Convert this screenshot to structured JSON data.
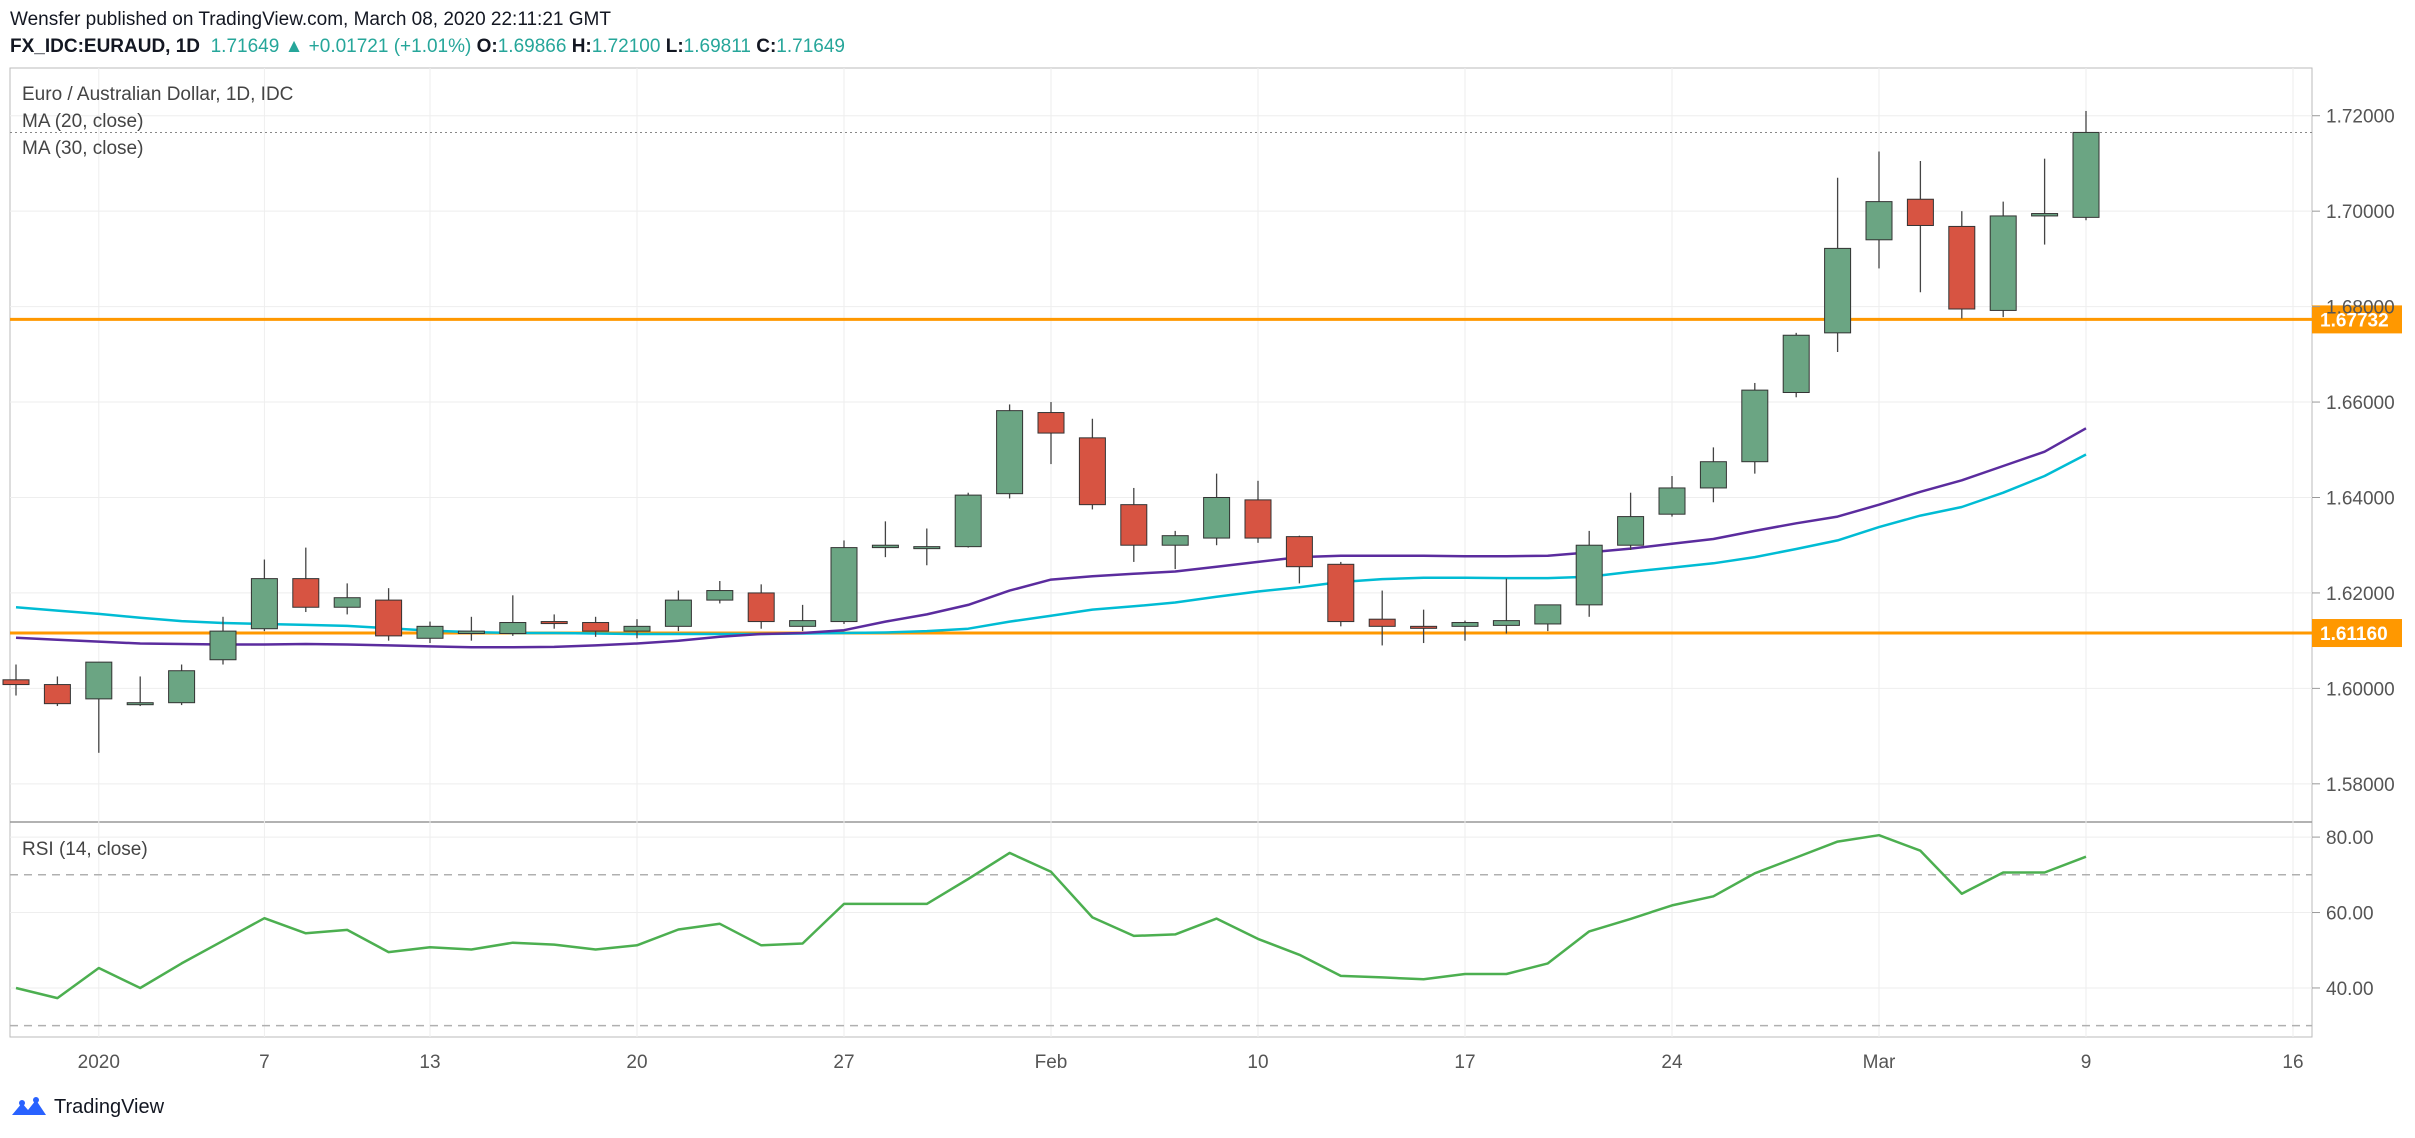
{
  "header": {
    "publisher_line": "Wensfer published on TradingView.com, March 08, 2020 22:11:21 GMT",
    "symbol": "FX_IDC:EURAUD, 1D",
    "last": "1.71649",
    "change": "+0.01721 (+1.01%)",
    "o_label": "O:",
    "o_val": "1.69866",
    "h_label": "H:",
    "h_val": "1.72100",
    "l_label": "L:",
    "l_val": "1.69811",
    "c_label": "C:",
    "c_val": "1.71649"
  },
  "footer": {
    "brand": "TradingView"
  },
  "colors": {
    "up": "#6ba583",
    "down": "#d75442",
    "ma20": "#5b2c9e",
    "ma30": "#00bcd4",
    "rsi": "#4caf50",
    "level": "#ff9800",
    "grid": "#eeeeee",
    "axis_text": "#555555"
  },
  "chart_data": [
    {
      "type": "candlestick",
      "title": "Euro / Australian Dollar, 1D, IDC",
      "indicators": [
        "MA (20, close)",
        "MA (30, close)"
      ],
      "ylim": [
        1.572,
        1.73
      ],
      "y_ticks": [
        "1.58000",
        "1.60000",
        "1.62000",
        "1.64000",
        "1.66000",
        "1.68000",
        "1.70000",
        "1.72000"
      ],
      "x_ticks": [
        {
          "label": "2020",
          "index": 2
        },
        {
          "label": "7",
          "index": 6
        },
        {
          "label": "13",
          "index": 10
        },
        {
          "label": "20",
          "index": 15
        },
        {
          "label": "27",
          "index": 20
        },
        {
          "label": "Feb",
          "index": 25
        },
        {
          "label": "10",
          "index": 30
        },
        {
          "label": "17",
          "index": 35
        },
        {
          "label": "24",
          "index": 40
        },
        {
          "label": "Mar",
          "index": 45
        },
        {
          "label": "9",
          "index": 50
        },
        {
          "label": "16",
          "index": 55
        }
      ],
      "levels": [
        {
          "label": "1.67732",
          "value": 1.67732
        },
        {
          "label": "1.61160",
          "value": 1.6116
        }
      ],
      "last_price": 1.71649,
      "candles": [
        {
          "o": 1.6018,
          "h": 1.605,
          "l": 1.5985,
          "c": 1.6008
        },
        {
          "o": 1.6008,
          "h": 1.6025,
          "l": 1.5963,
          "c": 1.5968
        },
        {
          "o": 1.5978,
          "h": 1.6055,
          "l": 1.5865,
          "c": 1.6055
        },
        {
          "o": 1.5968,
          "h": 1.6025,
          "l": 1.5963,
          "c": 1.597
        },
        {
          "o": 1.597,
          "h": 1.605,
          "l": 1.5965,
          "c": 1.6037
        },
        {
          "o": 1.606,
          "h": 1.615,
          "l": 1.605,
          "c": 1.612
        },
        {
          "o": 1.6125,
          "h": 1.627,
          "l": 1.612,
          "c": 1.623
        },
        {
          "o": 1.623,
          "h": 1.6295,
          "l": 1.616,
          "c": 1.617
        },
        {
          "o": 1.617,
          "h": 1.622,
          "l": 1.6155,
          "c": 1.619
        },
        {
          "o": 1.6185,
          "h": 1.621,
          "l": 1.61,
          "c": 1.611
        },
        {
          "o": 1.6105,
          "h": 1.614,
          "l": 1.6095,
          "c": 1.613
        },
        {
          "o": 1.6115,
          "h": 1.615,
          "l": 1.61,
          "c": 1.612
        },
        {
          "o": 1.6115,
          "h": 1.6195,
          "l": 1.611,
          "c": 1.6138
        },
        {
          "o": 1.614,
          "h": 1.6155,
          "l": 1.6125,
          "c": 1.6137
        },
        {
          "o": 1.6138,
          "h": 1.615,
          "l": 1.6108,
          "c": 1.612
        },
        {
          "o": 1.612,
          "h": 1.6145,
          "l": 1.6105,
          "c": 1.613
        },
        {
          "o": 1.613,
          "h": 1.6205,
          "l": 1.612,
          "c": 1.6185
        },
        {
          "o": 1.6185,
          "h": 1.6225,
          "l": 1.6178,
          "c": 1.6205
        },
        {
          "o": 1.62,
          "h": 1.6218,
          "l": 1.6125,
          "c": 1.614
        },
        {
          "o": 1.613,
          "h": 1.6175,
          "l": 1.612,
          "c": 1.6142
        },
        {
          "o": 1.614,
          "h": 1.631,
          "l": 1.6135,
          "c": 1.6295
        },
        {
          "o": 1.6295,
          "h": 1.635,
          "l": 1.6275,
          "c": 1.63
        },
        {
          "o": 1.6297,
          "h": 1.6335,
          "l": 1.6258,
          "c": 1.6297
        },
        {
          "o": 1.6297,
          "h": 1.641,
          "l": 1.6295,
          "c": 1.6405
        },
        {
          "o": 1.6408,
          "h": 1.6595,
          "l": 1.6398,
          "c": 1.6582
        },
        {
          "o": 1.6578,
          "h": 1.66,
          "l": 1.647,
          "c": 1.6535
        },
        {
          "o": 1.6525,
          "h": 1.6565,
          "l": 1.6375,
          "c": 1.6385
        },
        {
          "o": 1.6385,
          "h": 1.642,
          "l": 1.6265,
          "c": 1.63
        },
        {
          "o": 1.63,
          "h": 1.633,
          "l": 1.625,
          "c": 1.632
        },
        {
          "o": 1.6315,
          "h": 1.645,
          "l": 1.63,
          "c": 1.64
        },
        {
          "o": 1.6395,
          "h": 1.6435,
          "l": 1.6305,
          "c": 1.6315
        },
        {
          "o": 1.6318,
          "h": 1.632,
          "l": 1.622,
          "c": 1.6255
        },
        {
          "o": 1.626,
          "h": 1.6265,
          "l": 1.613,
          "c": 1.614
        },
        {
          "o": 1.6145,
          "h": 1.6205,
          "l": 1.609,
          "c": 1.613
        },
        {
          "o": 1.613,
          "h": 1.6165,
          "l": 1.6095,
          "c": 1.6127
        },
        {
          "o": 1.613,
          "h": 1.6142,
          "l": 1.61,
          "c": 1.6138
        },
        {
          "o": 1.6132,
          "h": 1.623,
          "l": 1.6115,
          "c": 1.6142
        },
        {
          "o": 1.6135,
          "h": 1.6175,
          "l": 1.612,
          "c": 1.6175
        },
        {
          "o": 1.6175,
          "h": 1.633,
          "l": 1.615,
          "c": 1.63
        },
        {
          "o": 1.63,
          "h": 1.641,
          "l": 1.629,
          "c": 1.636
        },
        {
          "o": 1.6365,
          "h": 1.6445,
          "l": 1.636,
          "c": 1.642
        },
        {
          "o": 1.642,
          "h": 1.6505,
          "l": 1.639,
          "c": 1.6475
        },
        {
          "o": 1.6475,
          "h": 1.664,
          "l": 1.645,
          "c": 1.6625
        },
        {
          "o": 1.662,
          "h": 1.6745,
          "l": 1.661,
          "c": 1.674
        },
        {
          "o": 1.6745,
          "h": 1.707,
          "l": 1.6705,
          "c": 1.6922
        },
        {
          "o": 1.694,
          "h": 1.7125,
          "l": 1.688,
          "c": 1.702
        },
        {
          "o": 1.7025,
          "h": 1.7105,
          "l": 1.683,
          "c": 1.697
        },
        {
          "o": 1.6968,
          "h": 1.7,
          "l": 1.6775,
          "c": 1.6795
        },
        {
          "o": 1.6792,
          "h": 1.702,
          "l": 1.6778,
          "c": 1.699
        },
        {
          "o": 1.699,
          "h": 1.711,
          "l": 1.693,
          "c": 1.6995
        },
        {
          "o": 1.6987,
          "h": 1.721,
          "l": 1.6981,
          "c": 1.7165
        }
      ],
      "ma20": [
        1.6106,
        1.6102,
        1.6098,
        1.6094,
        1.6093,
        1.6092,
        1.6092,
        1.6093,
        1.6092,
        1.609,
        1.6088,
        1.6086,
        1.6086,
        1.6087,
        1.609,
        1.6094,
        1.61,
        1.6108,
        1.6114,
        1.6116,
        1.6122,
        1.614,
        1.6155,
        1.6175,
        1.6205,
        1.6228,
        1.6235,
        1.624,
        1.6245,
        1.6255,
        1.6265,
        1.6275,
        1.6278,
        1.6278,
        1.6278,
        1.6277,
        1.6277,
        1.6278,
        1.6285,
        1.6293,
        1.6303,
        1.6313,
        1.633,
        1.6346,
        1.636,
        1.6385,
        1.6412,
        1.6436,
        1.6466,
        1.6496,
        1.6545
      ],
      "ma30": [
        1.617,
        1.6163,
        1.6156,
        1.6148,
        1.6141,
        1.6137,
        1.6135,
        1.6133,
        1.6131,
        1.6126,
        1.6121,
        1.6118,
        1.6116,
        1.6116,
        1.6115,
        1.6114,
        1.6114,
        1.6114,
        1.6114,
        1.6115,
        1.6116,
        1.6117,
        1.612,
        1.6125,
        1.614,
        1.6152,
        1.6165,
        1.6172,
        1.618,
        1.6192,
        1.6203,
        1.6212,
        1.6223,
        1.6229,
        1.6232,
        1.6232,
        1.6231,
        1.6231,
        1.6234,
        1.6244,
        1.6253,
        1.6262,
        1.6275,
        1.6292,
        1.631,
        1.6338,
        1.6362,
        1.638,
        1.641,
        1.6445,
        1.649
      ]
    },
    {
      "type": "line",
      "title": "RSI (14, close)",
      "ylim": [
        27,
        84
      ],
      "y_ticks": [
        "40.00",
        "60.00",
        "80.00"
      ],
      "bands": [
        30,
        70
      ],
      "series": [
        {
          "values": [
            40.0,
            37.3,
            45.3,
            40.0,
            46.5,
            52.5,
            58.5,
            54.5,
            55.4,
            49.5,
            50.8,
            50.2,
            52.0,
            51.5,
            50.2,
            51.3,
            55.5,
            57.0,
            51.3,
            51.8,
            62.3,
            62.3,
            62.3,
            68.9,
            75.8,
            70.8,
            58.7,
            53.8,
            54.2,
            58.4,
            53.0,
            48.8,
            43.2,
            42.8,
            42.3,
            43.7,
            43.7,
            46.5,
            55.0,
            58.3,
            61.9,
            64.3,
            70.4,
            74.6,
            78.8,
            80.5,
            76.4,
            65.0,
            70.6,
            70.6,
            74.8
          ]
        }
      ]
    }
  ]
}
